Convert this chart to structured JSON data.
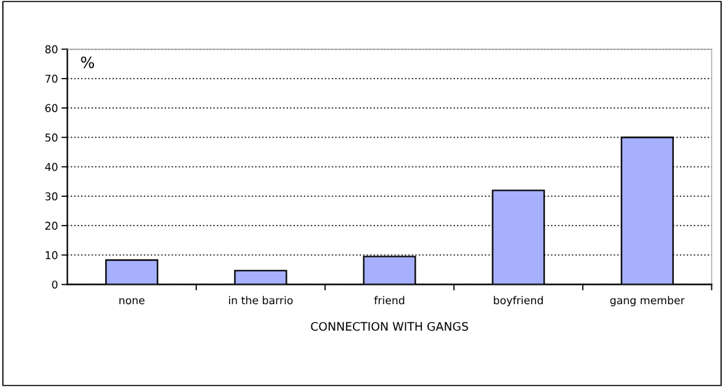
{
  "chart_data": {
    "type": "bar",
    "xlabel": "CONNECTION WITH GANGS",
    "ylabel": "%",
    "categories": [
      "none",
      "in the barrio",
      "friend",
      "boyfriend",
      "gang member"
    ],
    "values": [
      8.3,
      4.7,
      9.5,
      32,
      50
    ],
    "color": "#a6b0fc",
    "ylim": [
      0,
      80
    ],
    "yticks": [
      0,
      10,
      20,
      30,
      40,
      50,
      60,
      70,
      80
    ],
    "grid": "y"
  }
}
